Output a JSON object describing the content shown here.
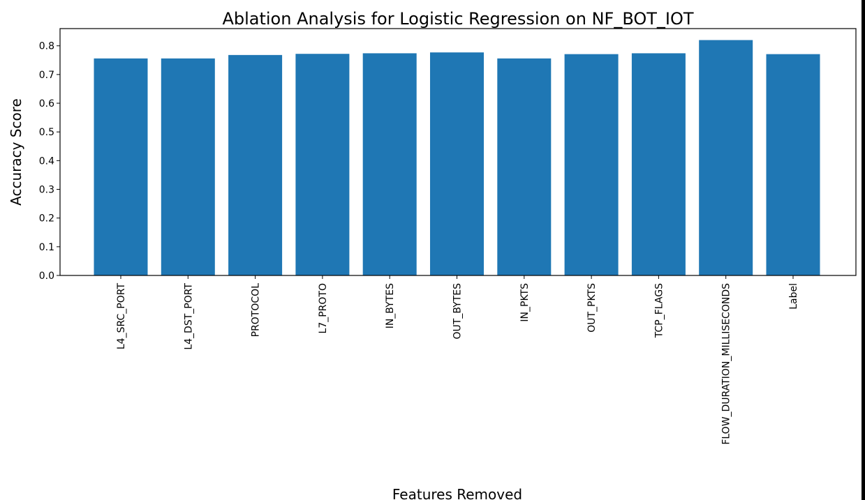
{
  "chart_data": {
    "type": "bar",
    "title": "Ablation Analysis for Logistic Regression on NF_BOT_IOT",
    "xlabel": "Features Removed",
    "ylabel": "Accuracy Score",
    "categories": [
      "L4_SRC_PORT",
      "L4_DST_PORT",
      "PROTOCOL",
      "L7_PROTO",
      "IN_BYTES",
      "OUT_BYTES",
      "IN_PKTS",
      "OUT_PKTS",
      "TCP_FLAGS",
      "FLOW_DURATION_MILLISECONDS",
      "Label"
    ],
    "values": [
      0.756,
      0.756,
      0.768,
      0.772,
      0.774,
      0.777,
      0.756,
      0.771,
      0.774,
      0.82,
      0.771
    ],
    "ylim": [
      0,
      0.86
    ],
    "yticks": [
      0.0,
      0.1,
      0.2,
      0.3,
      0.4,
      0.5,
      0.6,
      0.7,
      0.8
    ],
    "ytick_labels": [
      "0.0",
      "0.1",
      "0.2",
      "0.3",
      "0.4",
      "0.5",
      "0.6",
      "0.7",
      "0.8"
    ],
    "bar_color": "#1f77b4",
    "grid": false,
    "legend": "none"
  }
}
